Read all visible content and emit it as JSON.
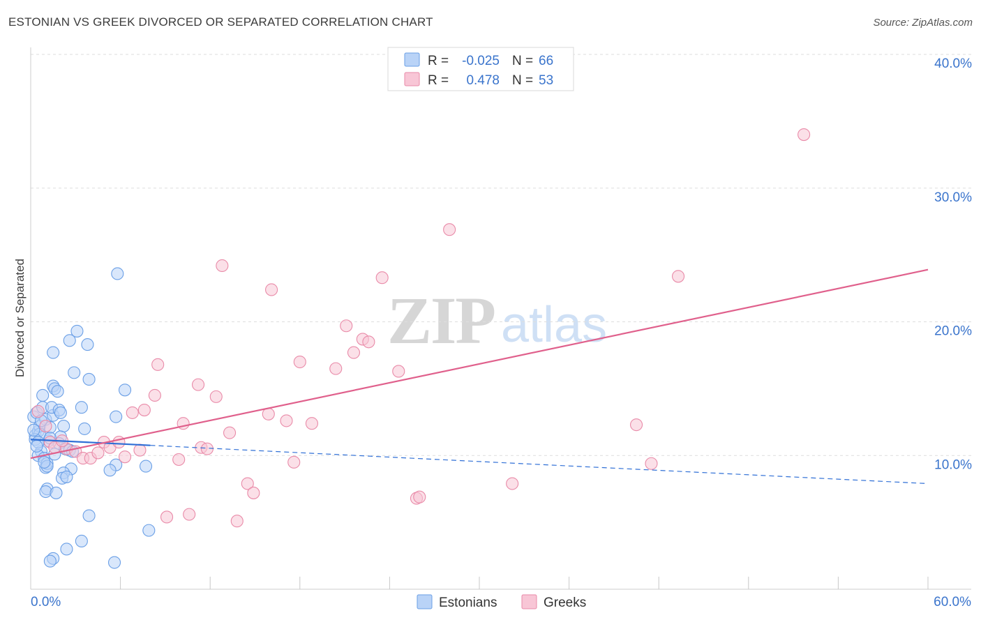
{
  "chart_data": {
    "type": "scatter",
    "title": "ESTONIAN VS GREEK DIVORCED OR SEPARATED CORRELATION CHART",
    "source": "Source: ZipAtlas.com",
    "xlabel": "",
    "ylabel": "Divorced or Separated",
    "xlim": [
      0,
      60
    ],
    "ylim": [
      0,
      40
    ],
    "x_tick_labels": [
      "0.0%",
      "60.0%"
    ],
    "y_ticks": [
      10,
      20,
      30,
      40
    ],
    "y_tick_labels": [
      "10.0%",
      "20.0%",
      "30.0%",
      "40.0%"
    ],
    "grid": true,
    "watermark": "ZIPatlas",
    "stats": [
      {
        "r_label": "R =",
        "r_value": "-0.025",
        "n_label": "N =",
        "n_value": "66"
      },
      {
        "r_label": "R =",
        "r_value": "0.478",
        "n_label": "N =",
        "n_value": "53"
      }
    ],
    "series": [
      {
        "name": "Estonians",
        "color": "#6a9fe6",
        "fill": "#b9d3f7",
        "line_color": "#2f6fd6",
        "trend": {
          "x0": 0,
          "y0": 11.2,
          "x1": 60,
          "y1": 7.9,
          "solid_until": 8
        },
        "points": [
          [
            0.3,
            11.5
          ],
          [
            0.5,
            11.8
          ],
          [
            0.6,
            12.2
          ],
          [
            0.2,
            12.9
          ],
          [
            0.4,
            13.2
          ],
          [
            0.8,
            13.6
          ],
          [
            0.7,
            10.3
          ],
          [
            0.5,
            10.0
          ],
          [
            0.9,
            9.8
          ],
          [
            1.0,
            9.1
          ],
          [
            1.1,
            9.4
          ],
          [
            1.2,
            11.1
          ],
          [
            0.6,
            11.6
          ],
          [
            0.3,
            11.2
          ],
          [
            1.0,
            12.7
          ],
          [
            1.3,
            12.1
          ],
          [
            1.5,
            13.0
          ],
          [
            0.8,
            14.5
          ],
          [
            1.4,
            13.6
          ],
          [
            1.5,
            15.2
          ],
          [
            1.6,
            15.0
          ],
          [
            1.8,
            14.8
          ],
          [
            1.9,
            13.4
          ],
          [
            2.0,
            13.2
          ],
          [
            2.2,
            12.2
          ],
          [
            2.0,
            11.4
          ],
          [
            1.9,
            10.9
          ],
          [
            2.3,
            10.5
          ],
          [
            2.6,
            10.4
          ],
          [
            2.7,
            9.0
          ],
          [
            2.2,
            8.7
          ],
          [
            2.1,
            8.3
          ],
          [
            2.4,
            8.4
          ],
          [
            1.1,
            7.5
          ],
          [
            1.0,
            7.3
          ],
          [
            1.7,
            7.2
          ],
          [
            1.5,
            17.7
          ],
          [
            2.6,
            18.6
          ],
          [
            3.1,
            19.3
          ],
          [
            3.8,
            18.3
          ],
          [
            2.9,
            16.2
          ],
          [
            3.9,
            15.7
          ],
          [
            3.4,
            13.6
          ],
          [
            3.6,
            12.0
          ],
          [
            5.8,
            23.6
          ],
          [
            6.3,
            14.9
          ],
          [
            5.7,
            12.9
          ],
          [
            5.7,
            9.3
          ],
          [
            5.3,
            8.9
          ],
          [
            7.7,
            9.2
          ],
          [
            3.9,
            5.5
          ],
          [
            3.4,
            3.6
          ],
          [
            2.4,
            3.0
          ],
          [
            7.9,
            4.4
          ],
          [
            1.5,
            2.3
          ],
          [
            1.3,
            2.1
          ],
          [
            5.6,
            2.0
          ],
          [
            1.1,
            9.2
          ],
          [
            0.9,
            9.5
          ],
          [
            0.5,
            11.0
          ],
          [
            0.7,
            12.6
          ],
          [
            1.3,
            11.3
          ],
          [
            0.2,
            11.9
          ],
          [
            0.4,
            10.7
          ],
          [
            1.6,
            10.1
          ],
          [
            2.8,
            10.3
          ]
        ]
      },
      {
        "name": "Greeks",
        "color": "#e98aa8",
        "fill": "#f8c6d6",
        "line_color": "#e0608c",
        "trend": {
          "x0": 0,
          "y0": 9.8,
          "x1": 60,
          "y1": 23.9
        },
        "points": [
          [
            0.5,
            13.3
          ],
          [
            1.0,
            12.2
          ],
          [
            1.3,
            11.0
          ],
          [
            1.6,
            10.6
          ],
          [
            2.4,
            10.5
          ],
          [
            3.0,
            10.3
          ],
          [
            3.5,
            9.8
          ],
          [
            4.0,
            9.8
          ],
          [
            4.5,
            10.2
          ],
          [
            4.9,
            11.0
          ],
          [
            5.3,
            10.6
          ],
          [
            5.9,
            11.0
          ],
          [
            6.3,
            9.9
          ],
          [
            6.8,
            13.2
          ],
          [
            7.3,
            10.4
          ],
          [
            7.6,
            13.4
          ],
          [
            8.3,
            14.5
          ],
          [
            8.5,
            16.8
          ],
          [
            9.1,
            5.4
          ],
          [
            9.9,
            9.7
          ],
          [
            10.2,
            12.4
          ],
          [
            10.6,
            5.6
          ],
          [
            11.2,
            15.3
          ],
          [
            11.4,
            10.6
          ],
          [
            11.8,
            10.5
          ],
          [
            12.4,
            14.4
          ],
          [
            12.8,
            24.2
          ],
          [
            13.3,
            11.7
          ],
          [
            13.8,
            5.1
          ],
          [
            14.5,
            7.9
          ],
          [
            14.9,
            7.2
          ],
          [
            15.9,
            13.1
          ],
          [
            16.1,
            22.4
          ],
          [
            17.1,
            12.6
          ],
          [
            17.6,
            9.5
          ],
          [
            18.0,
            17.0
          ],
          [
            18.8,
            12.4
          ],
          [
            20.4,
            16.5
          ],
          [
            21.1,
            19.7
          ],
          [
            21.6,
            17.7
          ],
          [
            22.2,
            18.7
          ],
          [
            22.6,
            18.5
          ],
          [
            23.5,
            23.3
          ],
          [
            24.6,
            16.3
          ],
          [
            25.8,
            6.8
          ],
          [
            26.0,
            6.9
          ],
          [
            28.0,
            26.9
          ],
          [
            32.2,
            7.9
          ],
          [
            40.5,
            12.3
          ],
          [
            41.5,
            9.4
          ],
          [
            43.3,
            23.4
          ],
          [
            51.7,
            34.0
          ],
          [
            2.1,
            11.1
          ]
        ]
      }
    ]
  }
}
